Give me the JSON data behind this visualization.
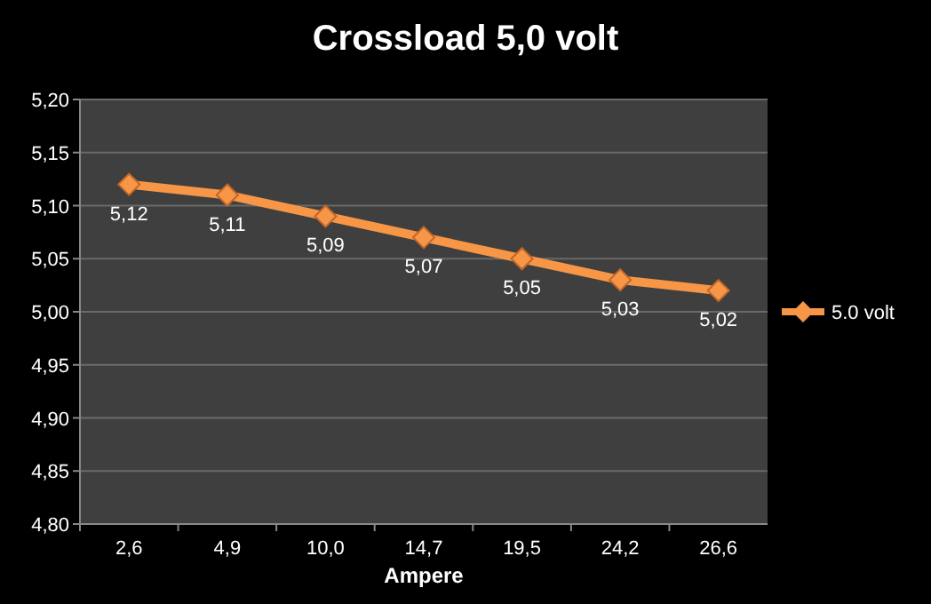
{
  "chart_data": {
    "type": "line",
    "title": "Crossload 5,0 volt",
    "xlabel": "Ampere",
    "categories": [
      "2,6",
      "4,9",
      "10,0",
      "14,7",
      "19,5",
      "24,2",
      "26,6"
    ],
    "series": [
      {
        "name": "5.0 volt",
        "color": "#f79646",
        "values": [
          5.12,
          5.11,
          5.09,
          5.07,
          5.05,
          5.03,
          5.02
        ],
        "value_labels": [
          "5,12",
          "5,11",
          "5,09",
          "5,07",
          "5,05",
          "5,03",
          "5,02"
        ]
      }
    ],
    "ylim": [
      4.8,
      5.2
    ],
    "yticks": [
      {
        "value": 4.8,
        "label": "4,80"
      },
      {
        "value": 4.85,
        "label": "4,85"
      },
      {
        "value": 4.9,
        "label": "4,90"
      },
      {
        "value": 4.95,
        "label": "4,95"
      },
      {
        "value": 5.0,
        "label": "5,00"
      },
      {
        "value": 5.05,
        "label": "5,05"
      },
      {
        "value": 5.1,
        "label": "5,10"
      },
      {
        "value": 5.15,
        "label": "5,15"
      },
      {
        "value": 5.2,
        "label": "5,20"
      }
    ],
    "grid": "y",
    "legend": "right",
    "marker": "diamond",
    "line_style": "solid"
  }
}
